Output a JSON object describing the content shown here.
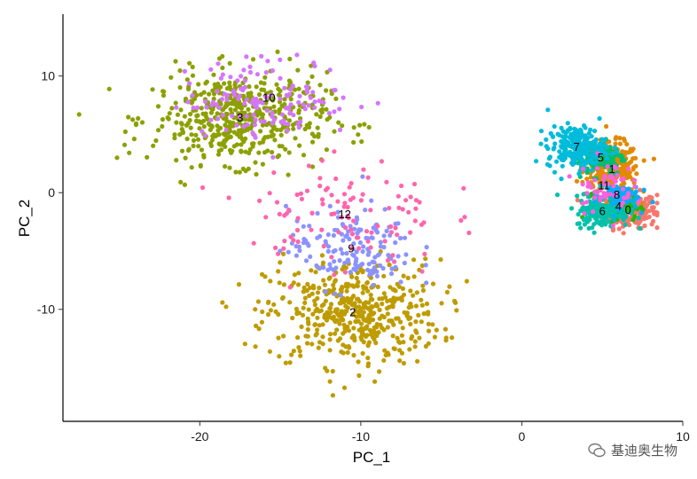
{
  "chart_data": {
    "type": "scatter",
    "title": "",
    "xlabel": "PC_1",
    "ylabel": "PC_2",
    "xlim": [
      -28.5,
      10
    ],
    "ylim": [
      -19.6,
      15.3
    ],
    "xticks": [
      -20,
      -10,
      0,
      10
    ],
    "xtick_labels": [
      "-20",
      "-10",
      "0",
      "10"
    ],
    "yticks": [
      10,
      0,
      -10
    ],
    "ytick_labels": [
      "10",
      "0",
      "-10"
    ],
    "grid": false,
    "legend": "none",
    "series": [
      {
        "label": "0",
        "color": "#F8766D",
        "center": [
          6.6,
          -1.5
        ],
        "spread": [
          1.2,
          1.0
        ],
        "n": 260
      },
      {
        "label": "1",
        "color": "#E18A00",
        "center": [
          5.6,
          2.0
        ],
        "spread": [
          1.1,
          1.5
        ],
        "n": 300
      },
      {
        "label": "2",
        "color": "#BE9C00",
        "center": [
          -10.5,
          -10.3
        ],
        "spread": [
          3.6,
          3.0
        ],
        "n": 480
      },
      {
        "label": "3",
        "color": "#8CA000",
        "center": [
          -17.5,
          6.4
        ],
        "spread": [
          3.6,
          2.6
        ],
        "n": 520
      },
      {
        "label": "4",
        "color": "#24B700",
        "center": [
          6.0,
          -1.2
        ],
        "spread": [
          0.9,
          0.8
        ],
        "n": 80
      },
      {
        "label": "5",
        "color": "#00BE70",
        "center": [
          4.9,
          3.0
        ],
        "spread": [
          1.0,
          1.0
        ],
        "n": 120
      },
      {
        "label": "6",
        "color": "#00C1AB",
        "center": [
          5.0,
          -1.6
        ],
        "spread": [
          1.1,
          0.9
        ],
        "n": 170
      },
      {
        "label": "7",
        "color": "#00BBDA",
        "center": [
          3.4,
          3.9
        ],
        "spread": [
          1.2,
          1.2
        ],
        "n": 220
      },
      {
        "label": "8",
        "color": "#00ACFC",
        "center": [
          5.9,
          -0.2
        ],
        "spread": [
          0.9,
          0.8
        ],
        "n": 70
      },
      {
        "label": "9",
        "color": "#8B93FF",
        "center": [
          -10.6,
          -4.8
        ],
        "spread": [
          2.6,
          2.3
        ],
        "n": 150
      },
      {
        "label": "10",
        "color": "#D575FE",
        "center": [
          -15.7,
          8.1
        ],
        "spread": [
          3.5,
          2.2
        ],
        "n": 140
      },
      {
        "label": "11",
        "color": "#F962DD",
        "center": [
          5.1,
          0.6
        ],
        "spread": [
          1.2,
          1.5
        ],
        "n": 60
      },
      {
        "label": "12",
        "color": "#FF65AC",
        "center": [
          -11.0,
          -1.9
        ],
        "spread": [
          4.0,
          3.5
        ],
        "n": 110
      }
    ]
  },
  "watermark": {
    "text": "基迪奥生物",
    "icon": "wechat-icon"
  }
}
